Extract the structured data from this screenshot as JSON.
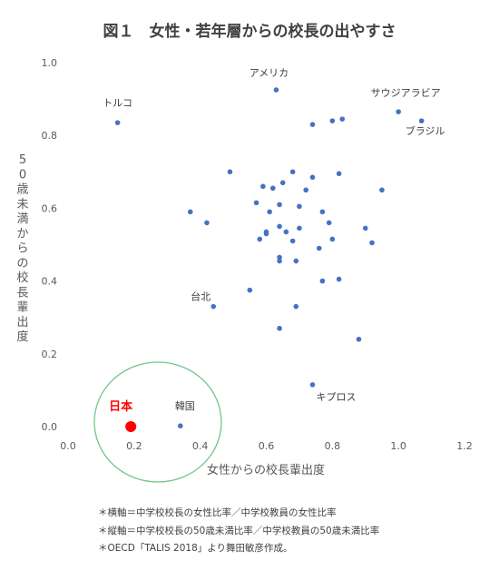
{
  "chart_data": {
    "type": "scatter",
    "title": "図１　女性・若年層からの校長の出やすさ",
    "xlabel": "女性からの校長輩出度",
    "ylabel": "50歳未満からの校長輩出度",
    "xlim": [
      0.0,
      1.2
    ],
    "ylim": [
      0.0,
      1.0
    ],
    "x_ticks": [
      "0.0",
      "0.2",
      "0.4",
      "0.6",
      "0.8",
      "1.0",
      "1.2"
    ],
    "y_ticks": [
      "0.0",
      "0.2",
      "0.4",
      "0.6",
      "0.8",
      "1.0"
    ],
    "grid": false,
    "point_color": "#4472c4",
    "highlight_color": "#ff0000",
    "circle_color": "#70c58c",
    "labeled_points": [
      {
        "label": "トルコ",
        "x": 0.15,
        "y": 0.835
      },
      {
        "label": "アメリカ",
        "x": 0.63,
        "y": 0.925
      },
      {
        "label": "サウジアラビア",
        "x": 1.0,
        "y": 0.865
      },
      {
        "label": "ブラジル",
        "x": 1.07,
        "y": 0.84
      },
      {
        "label": "台北",
        "x": 0.44,
        "y": 0.33
      },
      {
        "label": "キプロス",
        "x": 0.74,
        "y": 0.115
      },
      {
        "label": "韓国",
        "x": 0.34,
        "y": 0.002
      }
    ],
    "highlight_point": {
      "label": "日本",
      "x": 0.19,
      "y": 0.0
    },
    "points": [
      [
        0.8,
        0.84
      ],
      [
        0.83,
        0.845
      ],
      [
        0.74,
        0.83
      ],
      [
        0.49,
        0.7
      ],
      [
        0.68,
        0.7
      ],
      [
        0.74,
        0.685
      ],
      [
        0.82,
        0.695
      ],
      [
        0.59,
        0.66
      ],
      [
        0.62,
        0.655
      ],
      [
        0.65,
        0.67
      ],
      [
        0.72,
        0.65
      ],
      [
        0.95,
        0.65
      ],
      [
        0.57,
        0.615
      ],
      [
        0.64,
        0.61
      ],
      [
        0.7,
        0.605
      ],
      [
        0.37,
        0.59
      ],
      [
        0.61,
        0.59
      ],
      [
        0.77,
        0.59
      ],
      [
        0.42,
        0.56
      ],
      [
        0.64,
        0.55
      ],
      [
        0.7,
        0.545
      ],
      [
        0.79,
        0.56
      ],
      [
        0.6,
        0.53
      ],
      [
        0.6,
        0.535
      ],
      [
        0.66,
        0.535
      ],
      [
        0.58,
        0.515
      ],
      [
        0.68,
        0.51
      ],
      [
        0.8,
        0.515
      ],
      [
        0.9,
        0.545
      ],
      [
        0.92,
        0.505
      ],
      [
        0.76,
        0.49
      ],
      [
        0.64,
        0.465
      ],
      [
        0.64,
        0.455
      ],
      [
        0.69,
        0.455
      ],
      [
        0.55,
        0.375
      ],
      [
        0.77,
        0.4
      ],
      [
        0.82,
        0.405
      ],
      [
        0.69,
        0.33
      ],
      [
        0.64,
        0.27
      ],
      [
        0.88,
        0.24
      ]
    ]
  },
  "notes": [
    "＊横軸＝中学校校長の女性比率／中学校教員の女性比率",
    "＊縦軸＝中学校校長の50歳未満比率／中学校教員の50歳未満比率",
    "＊OECD「TALIS 2018」より舞田敏彦作成。"
  ]
}
